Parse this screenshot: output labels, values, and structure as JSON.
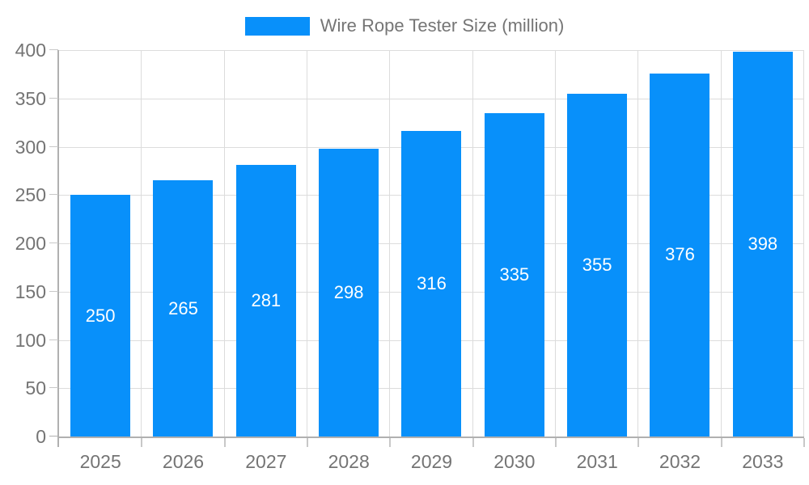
{
  "colors": {
    "bar": "#0890fa",
    "grid": "#dcdcdc",
    "axis": "#b0b0b0",
    "tick": "#c8c8c8",
    "tick_text": "#747474",
    "legend_text": "#757575",
    "value_label": "#ffffff",
    "background": "#ffffff"
  },
  "chart_data": {
    "type": "bar",
    "title": "",
    "legend": "Wire Rope Tester Size (million)",
    "legend_position": "top-center",
    "categories": [
      "2025",
      "2026",
      "2027",
      "2028",
      "2029",
      "2030",
      "2031",
      "2032",
      "2033"
    ],
    "values": [
      250,
      265,
      281,
      298,
      316,
      335,
      355,
      376,
      398
    ],
    "xlabel": "",
    "ylabel": "",
    "ylim": [
      0,
      400
    ],
    "yticks": [
      0,
      50,
      100,
      150,
      200,
      250,
      300,
      350,
      400
    ],
    "grid": true,
    "value_labels": "inside-center"
  }
}
